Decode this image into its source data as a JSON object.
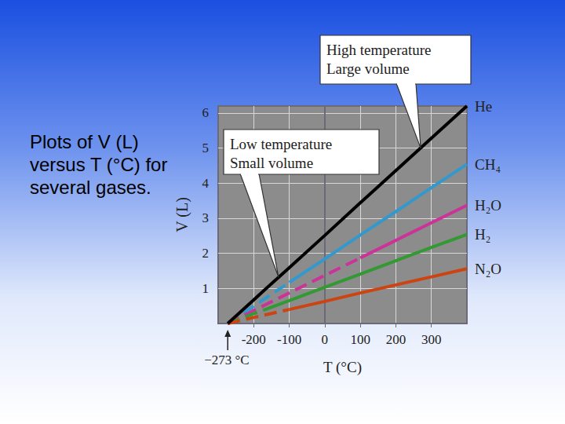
{
  "caption": "Plots of V (L) versus T (°C) for several gases.",
  "chart_data": {
    "type": "line",
    "x_label": "T (°C)",
    "y_label": "V (L)",
    "x": [
      -273,
      -200,
      -170,
      -100,
      0,
      100,
      200,
      300,
      400
    ],
    "xlim": [
      -300,
      400
    ],
    "xticks": [
      -200,
      -100,
      0,
      100,
      200,
      300
    ],
    "ylim": [
      0,
      6.2
    ],
    "yticks": [
      1,
      2,
      3,
      4,
      5,
      6
    ],
    "grid": true,
    "series": [
      {
        "name": "He",
        "color": "#000000",
        "values": [
          0,
          0.67,
          0.95,
          1.59,
          2.51,
          3.44,
          4.36,
          5.28,
          6.2
        ],
        "extrapolated": [
          null,
          null,
          null,
          null,
          null,
          null,
          null,
          null,
          null
        ]
      },
      {
        "name": "CH₄",
        "color": "#3399cc",
        "values": [
          null,
          null,
          null,
          1.17,
          1.84,
          2.52,
          3.19,
          3.87,
          4.54
        ],
        "extrapolated": [
          0,
          0.49,
          0.7,
          1.17,
          null,
          null,
          null,
          null,
          null
        ]
      },
      {
        "name": "H₂O",
        "color": "#cc3399",
        "values": [
          null,
          null,
          null,
          null,
          null,
          1.87,
          2.37,
          2.87,
          3.37
        ],
        "extrapolated": [
          0,
          0.37,
          0.52,
          0.87,
          1.37,
          1.87,
          null,
          null,
          null
        ]
      },
      {
        "name": "H₂",
        "color": "#339933",
        "values": [
          null,
          null,
          0.39,
          0.65,
          1.03,
          1.41,
          1.79,
          2.17,
          2.54
        ],
        "extrapolated": [
          0,
          0.28,
          0.39,
          null,
          null,
          null,
          null,
          null,
          null
        ]
      },
      {
        "name": "N₂O",
        "color": "#cc4411",
        "values": [
          null,
          null,
          null,
          0.4,
          0.63,
          0.87,
          1.1,
          1.33,
          1.56
        ],
        "extrapolated": [
          0,
          0.17,
          0.24,
          0.4,
          null,
          null,
          null,
          null,
          null
        ]
      }
    ],
    "annotations": [
      {
        "text": "High temperature\nLarge volume",
        "x": 270,
        "y": 5.0
      },
      {
        "text": "Low temperature\nSmall volume",
        "x": -130,
        "y": 1.32
      },
      {
        "text": "−273 °C",
        "x": -273
      }
    ]
  }
}
